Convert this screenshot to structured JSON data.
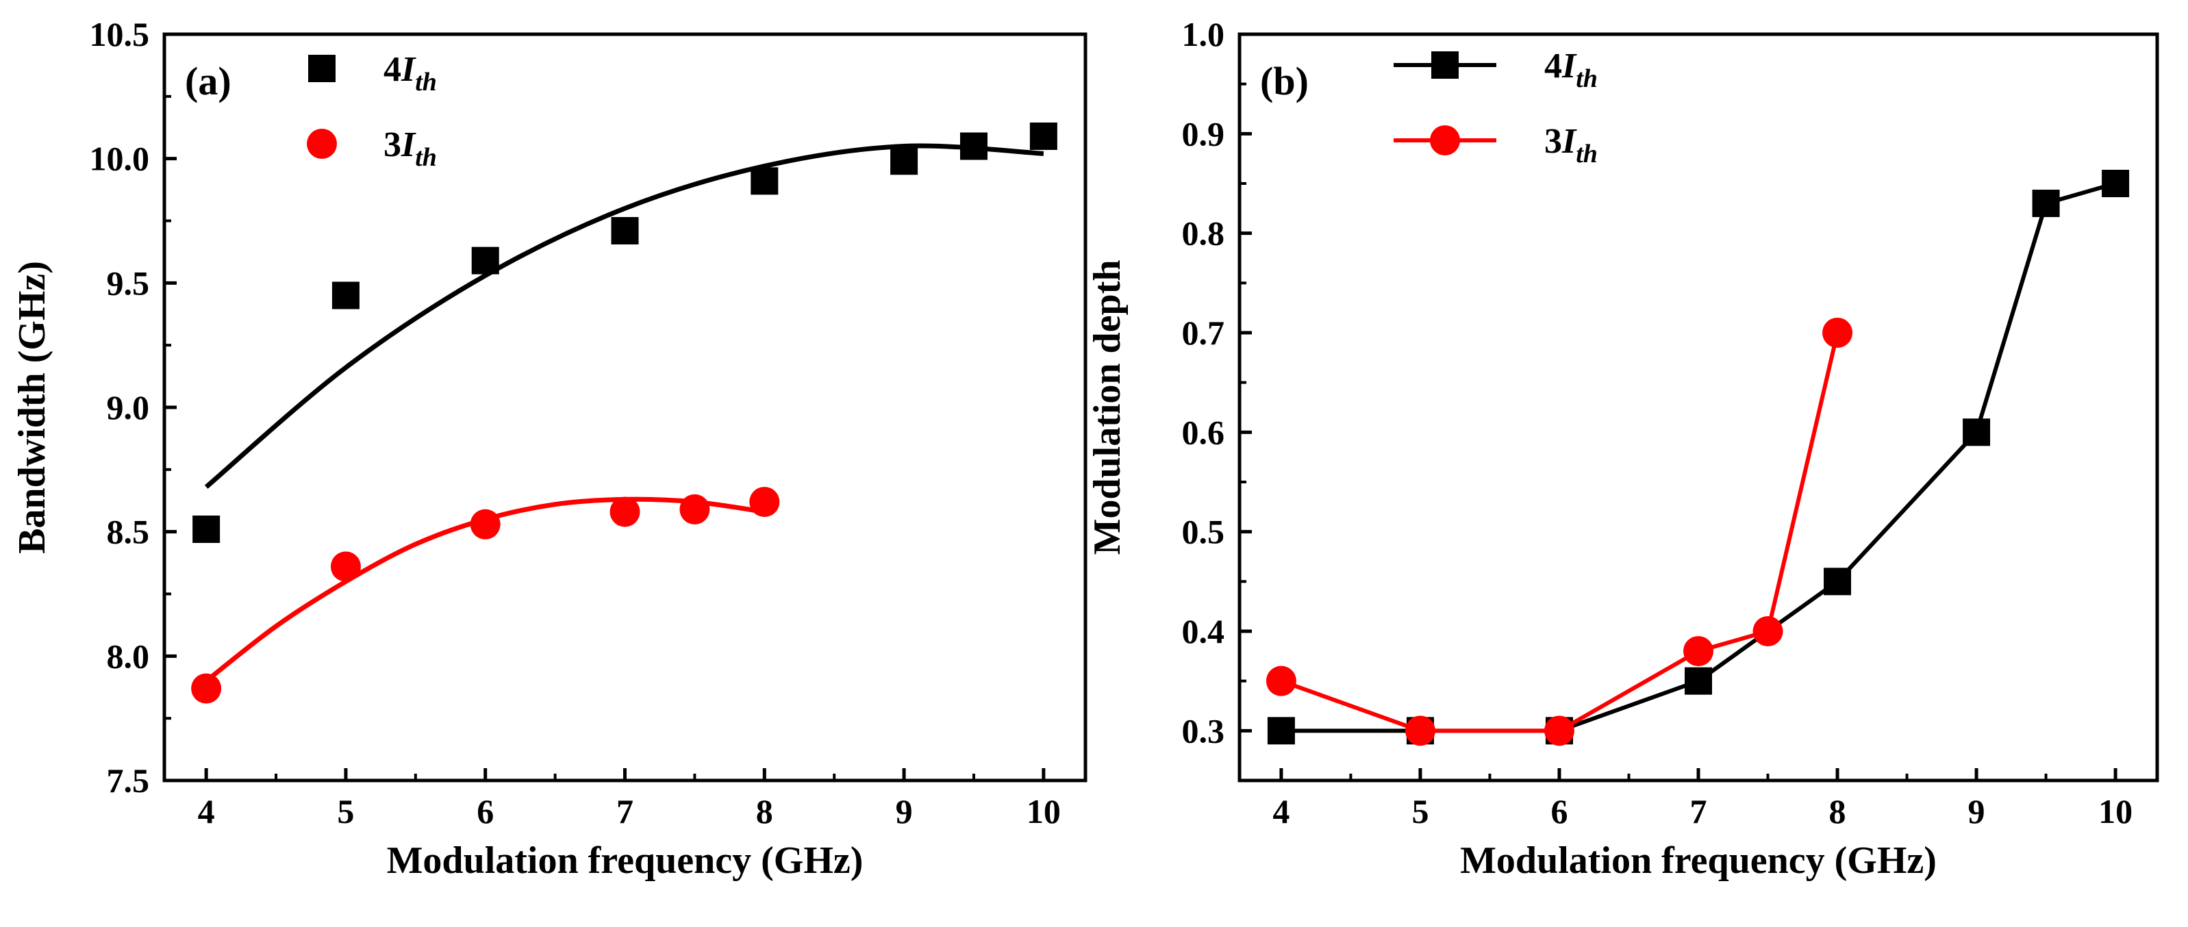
{
  "colors": {
    "series_4ith": "#000000",
    "series_3ith": "#ff0000"
  },
  "chart_data": [
    {
      "type": "scatter",
      "panel_label": "(a)",
      "xlabel": "Modulation frequency (GHz)",
      "ylabel": "Bandwidth (GHz)",
      "xlim": [
        3.7,
        10.3
      ],
      "ylim": [
        7.5,
        10.5
      ],
      "xticks": [
        "4",
        "5",
        "6",
        "7",
        "8",
        "9",
        "10"
      ],
      "yticks": [
        "7.5",
        "8.0",
        "8.5",
        "9.0",
        "9.5",
        "10.0",
        "10.5"
      ],
      "legend_position": "top-left",
      "series": [
        {
          "name_prefix": "4",
          "name_main": "I",
          "name_sub": "th",
          "marker": "square",
          "color": "#000000",
          "x": [
            4,
            5,
            6,
            7,
            8,
            9,
            9.5,
            10
          ],
          "y": [
            8.51,
            9.45,
            9.59,
            9.71,
            9.91,
            9.99,
            10.05,
            10.09
          ],
          "fit_curve": {
            "x": [
              4,
              5,
              6,
              7,
              8,
              9,
              10
            ],
            "y": [
              8.68,
              9.16,
              9.53,
              9.8,
              9.97,
              10.05,
              10.02
            ]
          }
        },
        {
          "name_prefix": "3",
          "name_main": "I",
          "name_sub": "th",
          "marker": "circle",
          "color": "#ff0000",
          "x": [
            4,
            5,
            6,
            7,
            7.5,
            8
          ],
          "y": [
            7.87,
            8.36,
            8.53,
            8.58,
            8.59,
            8.62
          ],
          "fit_curve": {
            "x": [
              4,
              4.5,
              5,
              5.5,
              6,
              6.5,
              7,
              7.5,
              8
            ],
            "y": [
              7.9,
              8.12,
              8.3,
              8.45,
              8.55,
              8.61,
              8.63,
              8.62,
              8.58
            ]
          }
        }
      ]
    },
    {
      "type": "line",
      "panel_label": "(b)",
      "xlabel": "Modulation frequency (GHz)",
      "ylabel": "Modulation depth",
      "xlim": [
        3.7,
        10.3
      ],
      "ylim": [
        0.25,
        1.0
      ],
      "xticks": [
        "4",
        "5",
        "6",
        "7",
        "8",
        "9",
        "10"
      ],
      "yticks": [
        "0.3",
        "0.4",
        "0.5",
        "0.6",
        "0.7",
        "0.8",
        "0.9",
        "1.0"
      ],
      "legend_position": "top-left",
      "series": [
        {
          "name_prefix": "4",
          "name_main": "I",
          "name_sub": "th",
          "marker": "square",
          "color": "#000000",
          "x": [
            4,
            5,
            6,
            7,
            8,
            9,
            9.5,
            10
          ],
          "y": [
            0.3,
            0.3,
            0.3,
            0.35,
            0.45,
            0.6,
            0.83,
            0.85
          ]
        },
        {
          "name_prefix": "3",
          "name_main": "I",
          "name_sub": "th",
          "marker": "circle",
          "color": "#ff0000",
          "x": [
            4,
            5,
            6,
            7,
            7.5,
            8
          ],
          "y": [
            0.35,
            0.3,
            0.3,
            0.38,
            0.4,
            0.7
          ]
        }
      ]
    }
  ]
}
